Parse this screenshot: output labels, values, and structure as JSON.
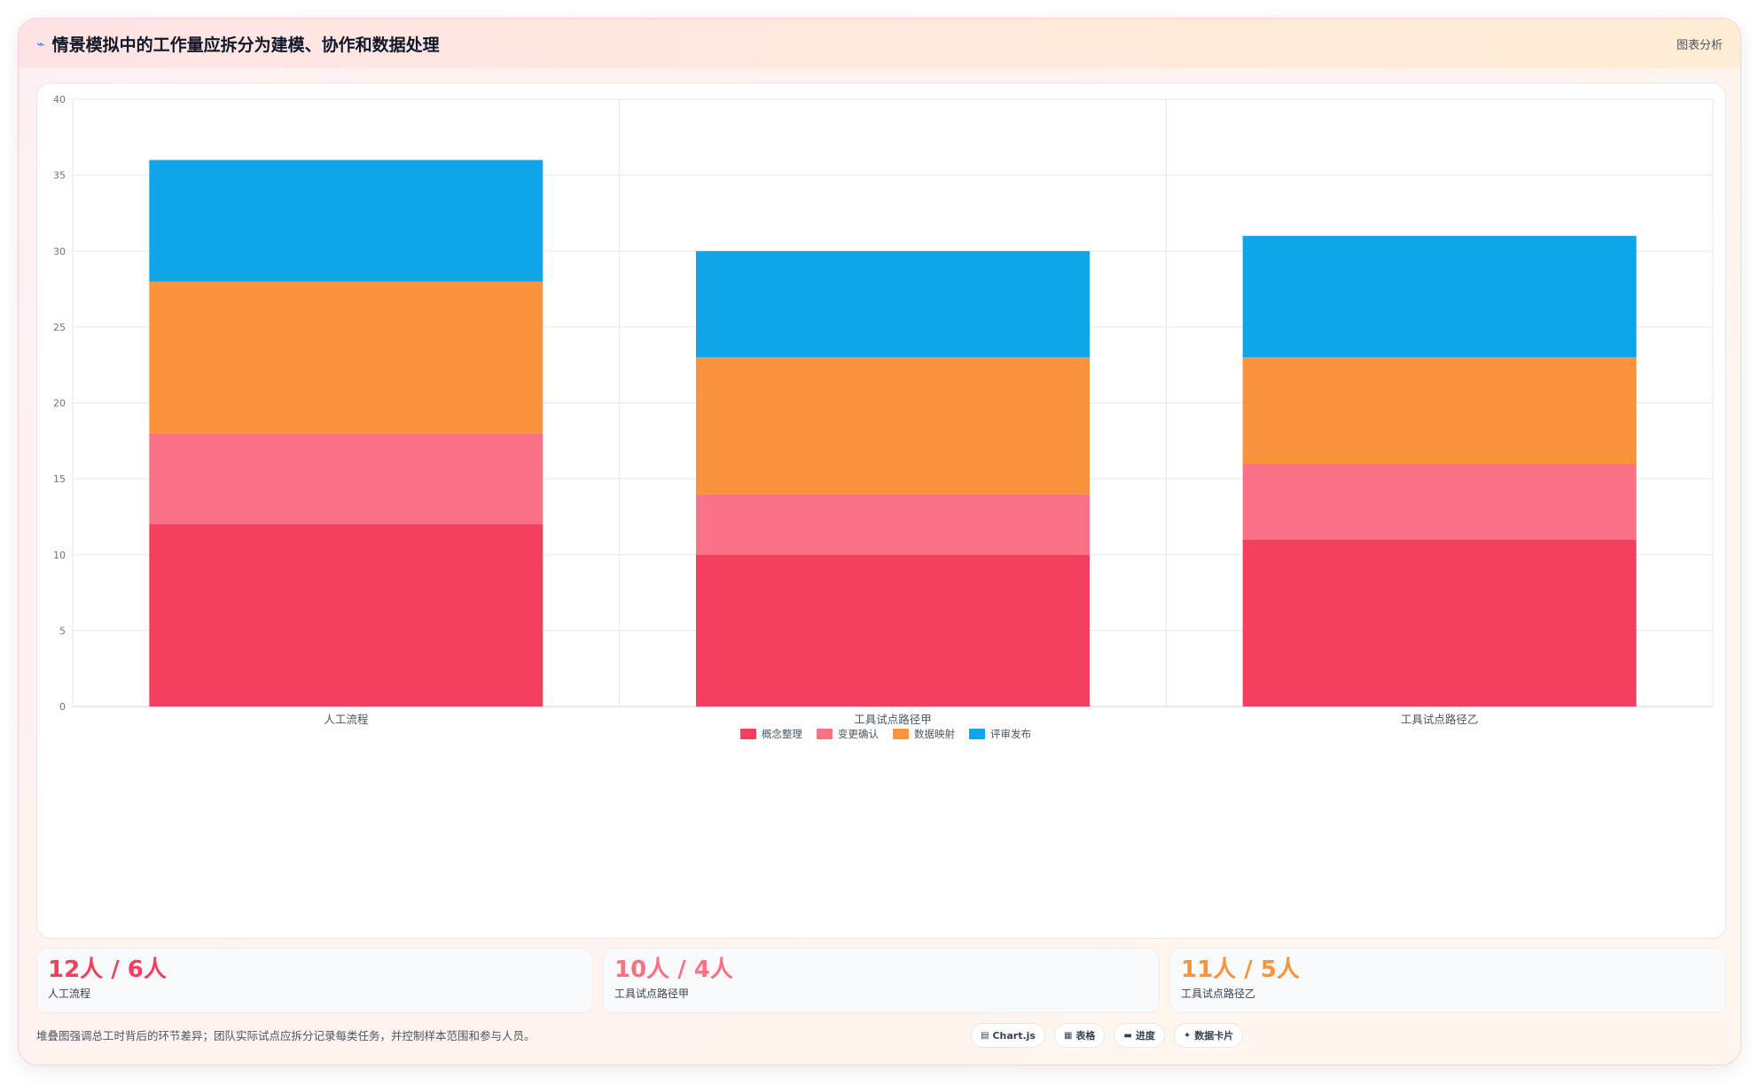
{
  "header": {
    "title": "情景模拟中的工作量应拆分为建模、协作和数据处理",
    "right_label": "图表分析"
  },
  "chart_data": {
    "type": "bar",
    "stacked": true,
    "categories": [
      "人工流程",
      "工具试点路径甲",
      "工具试点路径乙"
    ],
    "series": [
      {
        "name": "概念整理",
        "values": [
          12,
          10,
          11
        ],
        "color": "#f43f5e"
      },
      {
        "name": "变更确认",
        "values": [
          6,
          4,
          5
        ],
        "color": "#fb7185"
      },
      {
        "name": "数据映射",
        "values": [
          10,
          9,
          7
        ],
        "color": "#fb923c"
      },
      {
        "name": "评审发布",
        "values": [
          8,
          7,
          8
        ],
        "color": "#0ea5e9"
      }
    ],
    "ylim": [
      0,
      40
    ],
    "yticks": [
      "0",
      "5",
      "10",
      "15",
      "20",
      "25",
      "30",
      "35",
      "40"
    ],
    "grid": true,
    "legend": "bottom"
  },
  "kpis": [
    {
      "value": "12人 / 6人",
      "label": "人工流程",
      "color": "#f43f5e"
    },
    {
      "value": "10人 / 4人",
      "label": "工具试点路径甲",
      "color": "#fb7185"
    },
    {
      "value": "11人 / 5人",
      "label": "工具试点路径乙",
      "color": "#fb923c"
    }
  ],
  "footer": {
    "note": "堆叠图强调总工时背后的环节差异；团队实际试点应拆分记录每类任务，并控制样本范围和参与人员。",
    "chips": [
      {
        "label": "Chart.js",
        "icon": "▤"
      },
      {
        "label": "表格",
        "icon": "▦"
      },
      {
        "label": "进度",
        "icon": "▬"
      },
      {
        "label": "数据卡片",
        "icon": "✦"
      }
    ]
  }
}
